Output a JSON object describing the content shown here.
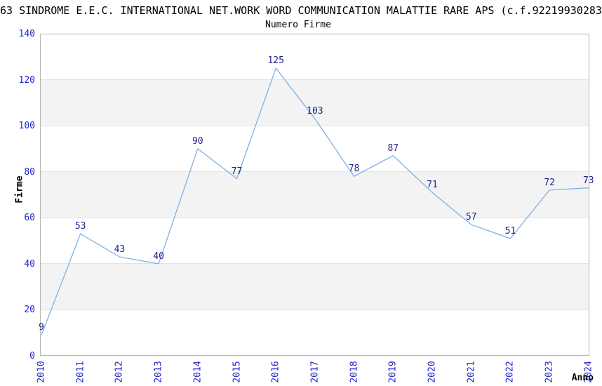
{
  "title": "63 SINDROME E.E.C. INTERNATIONAL NET.WORK WORD COMMUNICATION MALATTIE RARE APS (c.f.92219930283",
  "chart_data": {
    "type": "line",
    "title": "Numero Firme",
    "xlabel": "Anno",
    "ylabel": "Firme",
    "categories": [
      "2010",
      "2011",
      "2012",
      "2013",
      "2014",
      "2015",
      "2016",
      "2017",
      "2018",
      "2019",
      "2020",
      "2021",
      "2022",
      "2023",
      "2024"
    ],
    "values": [
      9,
      53,
      43,
      40,
      90,
      77,
      125,
      103,
      78,
      87,
      71,
      57,
      51,
      72,
      73
    ],
    "ylim": [
      0,
      140
    ],
    "ytick_step": 20,
    "grid": true,
    "legend": "none",
    "point_labels": true,
    "colors": {
      "line": "#7db1e8",
      "point_label": "#21218f",
      "tick_label": "#2323cc",
      "band": "#f3f3f3",
      "grid_line": "#e3e3e3",
      "plot_border": "#b5b5b5",
      "text": "#000000"
    }
  }
}
